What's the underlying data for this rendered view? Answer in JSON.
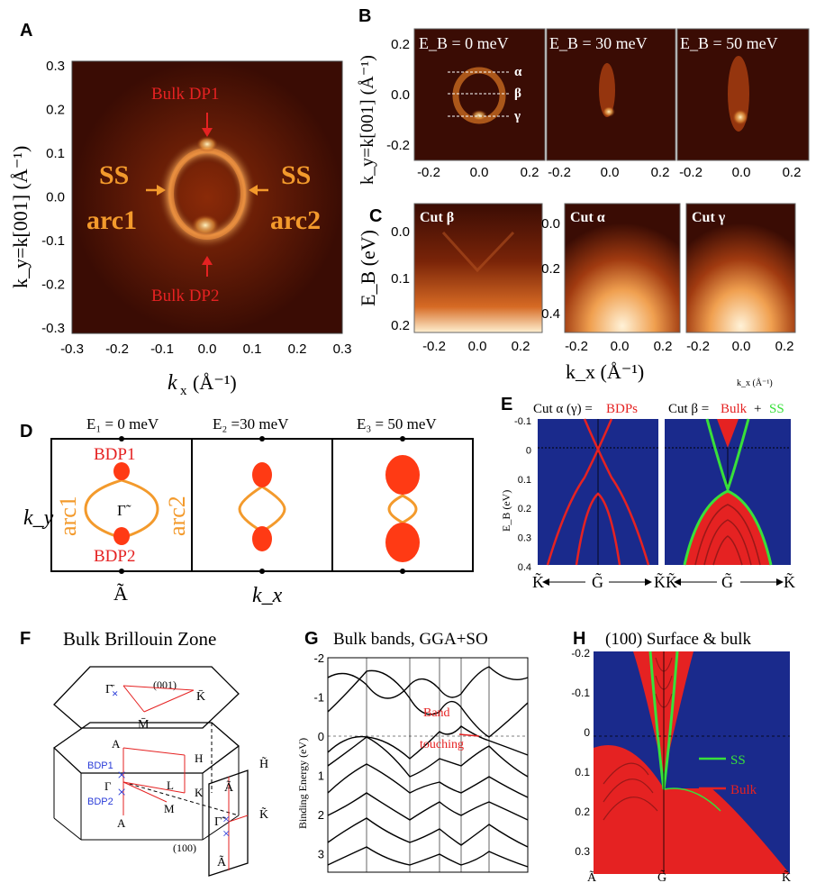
{
  "panel_labels": {
    "a": "A",
    "b": "B",
    "c": "C",
    "d": "D",
    "e": "E",
    "f": "F",
    "g": "G",
    "h": "H"
  },
  "panelA": {
    "ylabel": "k_y=k[001] (Å⁻¹)",
    "xlabel_k": "k",
    "xlabel_sub": "x",
    "xlabel_unit": "(Å⁻¹)",
    "xticks": [
      "-0.3",
      "-0.2",
      "-0.1",
      "0.0",
      "0.1",
      "0.2",
      "0.3"
    ],
    "yticks": [
      "0.3",
      "0.2",
      "0.1",
      "0.0",
      "-0.1",
      "-0.2",
      "-0.3"
    ],
    "bulk_dp1": "Bulk DP1",
    "bulk_dp2": "Bulk DP2",
    "ss1_line1": "SS",
    "ss1_line2": "arc1",
    "ss2_line1": "SS",
    "ss2_line2": "arc2"
  },
  "panelB": {
    "titles": [
      "E_B = 0 meV",
      "E_B = 30 meV",
      "E_B = 50 meV"
    ],
    "alpha": "α",
    "beta": "β",
    "gamma": "γ",
    "yticks": [
      "0.2",
      "0.0",
      "-0.2"
    ],
    "xticks": [
      "-0.2",
      "0.0",
      "0.2"
    ],
    "ylabel": "k_y=k[001] (Å⁻¹)"
  },
  "panelC": {
    "cuts": [
      "Cut β",
      "Cut α",
      "Cut γ"
    ],
    "yticks1": [
      "0.0",
      "0.1",
      "0.2"
    ],
    "yticks2": [
      "0.0",
      "0.2",
      "0.4"
    ],
    "xticks": [
      "-0.2",
      "0.0",
      "0.2"
    ],
    "ylabel": "E_B (eV)",
    "xlabel": "k_x (Å⁻¹)",
    "small_xlabel": "k_x (Å⁻¹)"
  },
  "panelD": {
    "e1": "E₁ = 0 meV",
    "e2": "E₂ =30 meV",
    "e3": "E₃ = 50 meV",
    "bdp1": "BDP1",
    "bdp2": "BDP2",
    "arc1": "arc1",
    "arc2": "arc2",
    "gamma": "Γ̃",
    "ky": "k_y",
    "abar": "Ã",
    "kx": "k_x"
  },
  "panelE": {
    "left_title_a": "Cut α (γ) = ",
    "left_title_b": "BDPs",
    "right_title_a": "Cut β = ",
    "right_title_b": "Bulk",
    "right_title_c": " + ",
    "right_title_d": "SS",
    "yticks": [
      "-0.1",
      "0",
      "0.1",
      "0.2",
      "0.3",
      "0.4"
    ],
    "ylabel": "E_B (eV)",
    "k_left": "K̃",
    "g": "G̃",
    "k_right": "K̃"
  },
  "panelF": {
    "title": "Bulk Brillouin Zone",
    "s001": "(001)",
    "s100": "(100)",
    "gamma_bar": "Γ̄",
    "k_bar": "K̄",
    "m_bar": "M̄",
    "A": "A",
    "H": "H",
    "L": "L",
    "K": "K",
    "M": "M",
    "Gamma": "Γ",
    "bdp1": "BDP1",
    "bdp2": "BDP2",
    "h_t": "H̃",
    "a_t": "Ã",
    "k_t": "K̃",
    "g_t": "Γ̃",
    "a_t2": "Ã"
  },
  "panelG": {
    "title": "Bulk bands, GGA+SO",
    "ylabel": "Binding Energy (eV)",
    "yticks": [
      "-2",
      "-1",
      "0",
      "1",
      "2",
      "3"
    ],
    "annotation_1": "Band",
    "annotation_2": "touching"
  },
  "panelH": {
    "title": "(100) Surface & bulk",
    "yticks": [
      "-0.2",
      "-0.1",
      "0",
      "0.1",
      "0.2",
      "0.3"
    ],
    "legend_ss": "SS",
    "legend_bulk": "Bulk",
    "a": "Ã",
    "g": "G̃",
    "k": "K̃"
  },
  "colors": {
    "orange": "#f39a2c",
    "red": "#e52222",
    "green": "#38e03a",
    "navy": "#1a2a8c",
    "blue": "#2a3cd8"
  }
}
